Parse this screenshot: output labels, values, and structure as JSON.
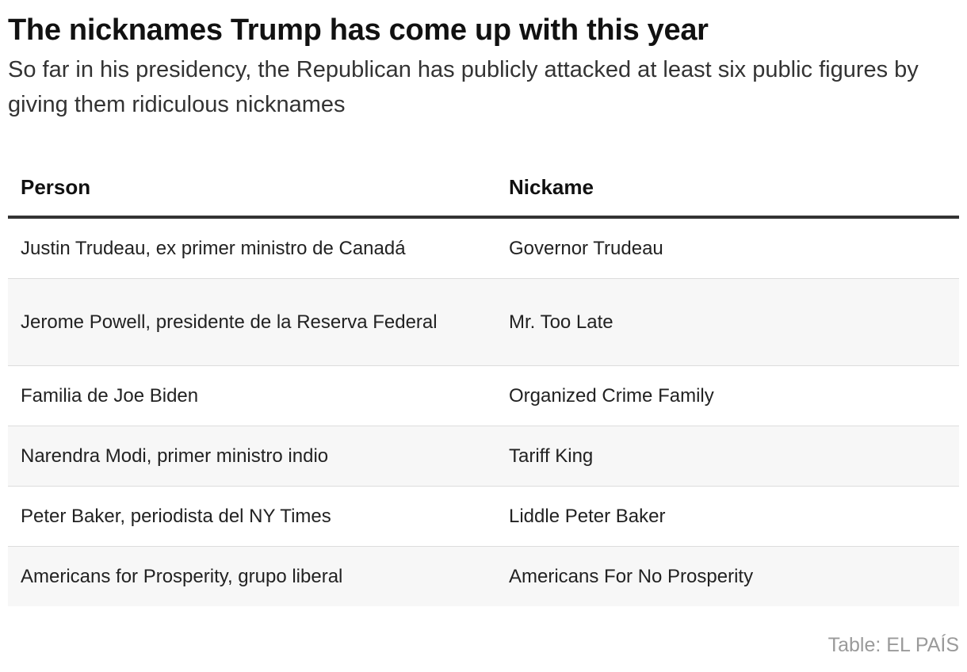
{
  "title": "The nicknames Trump has come up with this year",
  "subtitle": "So far in his presidency, the Republican has publicly attacked at least six public figures by giving them ridiculous nicknames",
  "table": {
    "columns": [
      "Person",
      "Nickame"
    ],
    "rows": [
      {
        "person": "Justin Trudeau, ex primer ministro de Canadá",
        "nickname": "Governor Trudeau"
      },
      {
        "person": "Jerome Powell, presidente de la Reserva Federal",
        "nickname": "Mr. Too Late"
      },
      {
        "person": "Familia de Joe Biden",
        "nickname": "Organized Crime Family"
      },
      {
        "person": "Narendra Modi, primer ministro indio",
        "nickname": "Tariff King"
      },
      {
        "person": "Peter Baker, periodista del NY Times",
        "nickname": "Liddle Peter Baker"
      },
      {
        "person": "Americans for Prosperity, grupo liberal",
        "nickname": "Americans For No Prosperity"
      }
    ]
  },
  "source": "Table: EL PAÍS",
  "colors": {
    "header_rule": "#333333",
    "row_alt_bg": "#f7f7f7",
    "row_divider": "#dddddd",
    "source_text": "#9a9a9a"
  }
}
